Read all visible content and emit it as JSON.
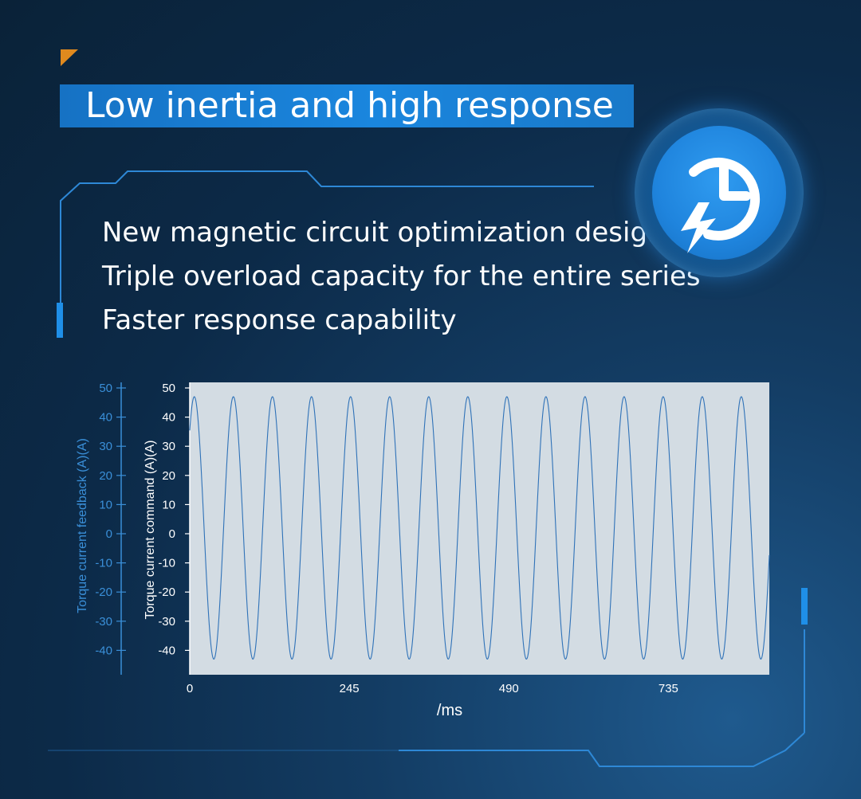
{
  "title": "Low inertia and high response",
  "bullets": [
    "New magnetic circuit optimization design",
    "Triple overload capacity for the entire series",
    "Faster response capability"
  ],
  "badge_icon": "clock-lightning-icon",
  "colors": {
    "accent_blue": "#1a86de",
    "orange_corner": "#e08a1e",
    "line": "#2f72b8",
    "plot_bg": "#d3dce3"
  },
  "chart_data": {
    "type": "line",
    "title": "",
    "xlabel": "/ms",
    "ylabel_left": "Torque current feedback (A)(A)",
    "ylabel_right": "Torque current command (A)(A)",
    "xlim": [
      0,
      890
    ],
    "ylim": [
      -48,
      51
    ],
    "x_ticks": [
      "0",
      "245",
      "490",
      "735"
    ],
    "x_tick_values": [
      0,
      245,
      490,
      735
    ],
    "y_ticks": [
      "50",
      "40",
      "30",
      "20",
      "10",
      "0",
      "-10",
      "-20",
      "-30",
      "-40"
    ],
    "y_tick_values": [
      50,
      40,
      30,
      20,
      10,
      0,
      -10,
      -20,
      -30,
      -40
    ],
    "grid": false,
    "series": [
      {
        "period_ms": 60,
        "amplitude": 45,
        "offset": 2,
        "first_peak_x": 7,
        "x_start": 0,
        "x_end": 890,
        "peak": 47,
        "trough": -43
      }
    ]
  }
}
